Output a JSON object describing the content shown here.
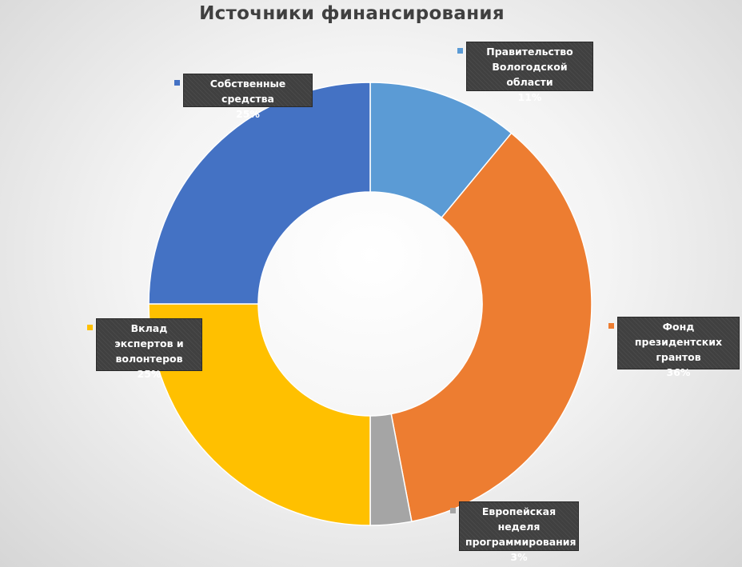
{
  "chart_data": {
    "type": "pie",
    "variant": "donut",
    "title": "Источники финансирования",
    "legend": "none",
    "series": [
      {
        "values": [
          11,
          36,
          3,
          25,
          25
        ]
      }
    ],
    "categories": [
      "Правительство Вологодской области",
      "Фонд президентских грантов",
      "Европейская неделя программирования",
      "Вклад экспертов и волонтеров",
      "Собственные средства"
    ],
    "slices": [
      {
        "label": "Правительство\nВологодской  области",
        "value": 11,
        "display": "11%",
        "color": "#5b9bd5"
      },
      {
        "label": "Фонд президентских\nгрантов",
        "value": 36,
        "display": "36%",
        "color": "#ed7d31"
      },
      {
        "label": "Европейская  неделя\nпрограммирования",
        "value": 3,
        "display": "3%",
        "color": "#a5a5a5"
      },
      {
        "label": "Вклад экспертов и\nволонтеров",
        "value": 25,
        "display": "25%",
        "color": "#ffc000"
      },
      {
        "label": "Собственные  средства",
        "value": 25,
        "display": "25%",
        "color": "#4472c4"
      }
    ]
  }
}
